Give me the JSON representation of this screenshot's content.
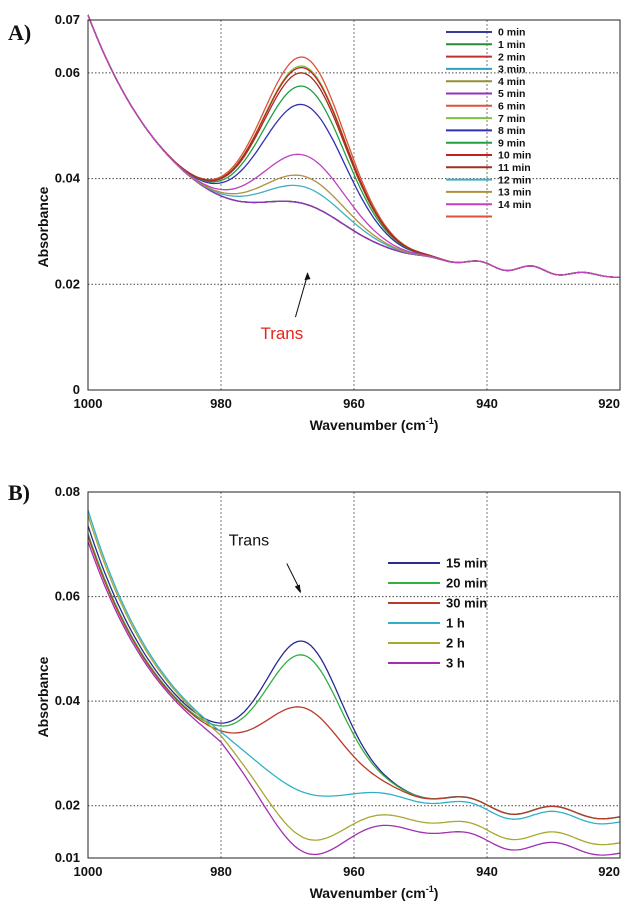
{
  "chart_data": [
    {
      "type": "line",
      "panel_label": "A)",
      "xlabel": "Wavenumber (cm",
      "xlabel_sup": "-1",
      "xlabel_end": ")",
      "ylabel": "Absorbance",
      "xlim": [
        1000,
        920
      ],
      "ylim": [
        0,
        0.07
      ],
      "x_ticks": [
        "1000",
        "980",
        "960",
        "940",
        "920"
      ],
      "y_ticks": [
        "0",
        "0.02",
        "0.04",
        "0.06",
        "0.07"
      ],
      "grid": true,
      "legend_position": "top-right",
      "annotation": {
        "text": "Trans",
        "color": "#e8231a",
        "points_to_x": 967,
        "points_to_y": 0.0225
      },
      "series": [
        {
          "name": "0  min",
          "color": "#3a3a9a",
          "peak": 0.0058,
          "post": 0.0,
          "sharp": 1.0
        },
        {
          "name": "1  min",
          "color": "#2a8a3a",
          "peak": 0.0058,
          "post": 0.0,
          "sharp": 1.0
        },
        {
          "name": "2  min",
          "color": "#c03030",
          "peak": 0.0058,
          "post": 0.0,
          "sharp": 1.0
        },
        {
          "name": "3  min",
          "color": "#30a0c0",
          "peak": 0.0058,
          "post": 0.0,
          "sharp": 1.0
        },
        {
          "name": "4  min",
          "color": "#909030",
          "peak": 0.0058,
          "post": 0.0,
          "sharp": 1.0
        },
        {
          "name": "5  min",
          "color": "#9030c0",
          "peak": 0.0058,
          "post": 0.0,
          "sharp": 1.0
        },
        {
          "name": "6  min",
          "color": "#e0503a",
          "peak": 0.0335,
          "post": 0.0,
          "sharp": 1.0
        },
        {
          "name": "7  min",
          "color": "#80c040",
          "peak": 0.0318,
          "post": 0.0,
          "sharp": 1.0
        },
        {
          "name": "8  min",
          "color": "#3030b0",
          "peak": 0.0245,
          "post": 0.0,
          "sharp": 1.0
        },
        {
          "name": "9  min",
          "color": "#20a040",
          "peak": 0.028,
          "post": 0.0,
          "sharp": 1.0
        },
        {
          "name": "10 min",
          "color": "#c02020",
          "peak": 0.0315,
          "post": 0.0,
          "sharp": 1.0
        },
        {
          "name": "11 min",
          "color": "#a03020",
          "peak": 0.0305,
          "post": 0.0,
          "sharp": 1.0
        },
        {
          "name": "12 min",
          "color": "#40b0c0",
          "peak": 0.009,
          "post": 0.0,
          "sharp": 1.0
        },
        {
          "name": "13 min",
          "color": "#b09040",
          "peak": 0.011,
          "post": 0.0,
          "sharp": 1.0
        },
        {
          "name": "14 min",
          "color": "#c040c0",
          "peak": 0.015,
          "post": 0.0,
          "sharp": 1.0
        }
      ]
    },
    {
      "type": "line",
      "panel_label": "B)",
      "xlabel": "Wavenumber (cm",
      "xlabel_sup": "-1",
      "xlabel_end": ")",
      "ylabel": "Absorbance",
      "xlim": [
        1000,
        920
      ],
      "ylim": [
        0.01,
        0.08
      ],
      "x_ticks": [
        "1000",
        "980",
        "960",
        "940",
        "920"
      ],
      "y_ticks": [
        "0.01",
        "0.02",
        "0.04",
        "0.06",
        "0.08"
      ],
      "grid": true,
      "legend_position": "right",
      "annotation": {
        "text": "Trans",
        "color": "#111111",
        "points_to_x": 968,
        "points_to_y": 0.0602
      },
      "series": [
        {
          "name": "15 min",
          "color": "#2a2a90",
          "start": 0.072,
          "peak": 0.0625
        },
        {
          "name": "20 min",
          "color": "#30b040",
          "start": 0.0705,
          "peak": 0.06
        },
        {
          "name": "30 min",
          "color": "#b83a2a",
          "start": 0.07,
          "peak": 0.05
        },
        {
          "name": "1  h",
          "color": "#30b0c8",
          "start": 0.075,
          "peak": 0.034
        },
        {
          "name": "2  h",
          "color": "#a8a830",
          "start": 0.074,
          "peak": 0.028
        },
        {
          "name": "3  h",
          "color": "#a030b0",
          "start": 0.069,
          "peak": 0.027
        }
      ]
    }
  ]
}
